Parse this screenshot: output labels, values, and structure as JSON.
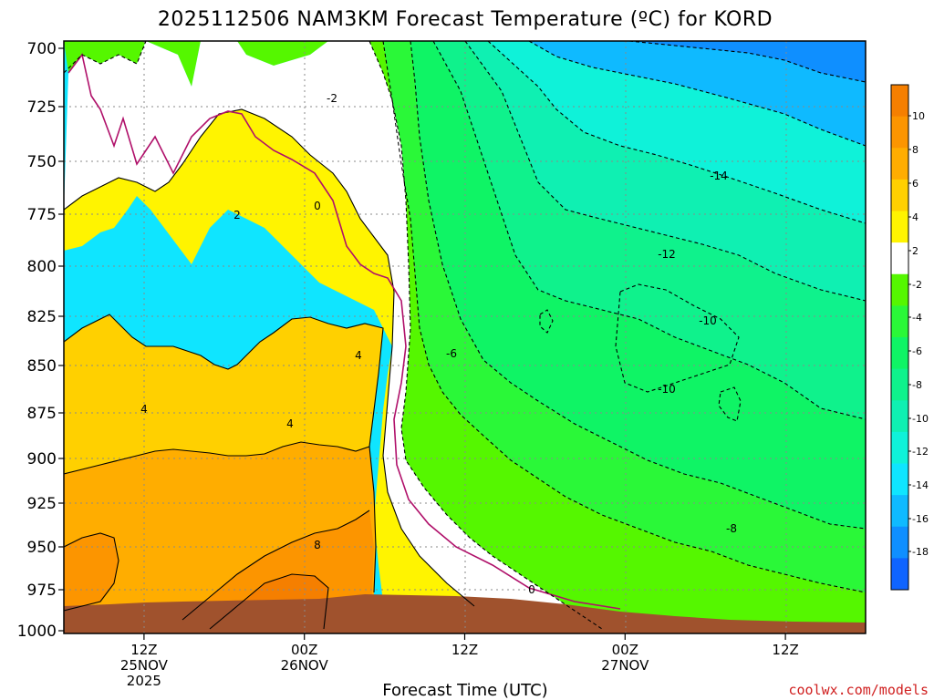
{
  "chart_data": {
    "type": "heatmap",
    "title": "2025112506 NAM3KM Forecast Temperature (ºC) for KORD",
    "xlabel": "Forecast Time (UTC)",
    "ylabel": "",
    "y_ticks": [
      "700",
      "725",
      "750",
      "775",
      "800",
      "825",
      "850",
      "875",
      "900",
      "925",
      "950",
      "975",
      "1000"
    ],
    "y_range": [
      700,
      1000
    ],
    "x_ticks": [
      {
        "hour": 6,
        "lines": [
          "12Z",
          "25NOV",
          "2025"
        ]
      },
      {
        "hour": 18,
        "lines": [
          "00Z",
          "26NOV"
        ]
      },
      {
        "hour": 30,
        "lines": [
          "12Z"
        ]
      },
      {
        "hour": 42,
        "lines": [
          "00Z",
          "27NOV"
        ]
      },
      {
        "hour": 54,
        "lines": [
          "12Z"
        ]
      }
    ],
    "x_range_hours": [
      0,
      60
    ],
    "colorbar": {
      "labels": [
        "10",
        "8",
        "6",
        "4",
        "2",
        "-2",
        "-4",
        "-6",
        "-8",
        "-10",
        "-12",
        "-14",
        "-16",
        "-18"
      ],
      "colors": [
        "#f57f00",
        "#fc9500",
        "#ffad00",
        "#ffd000",
        "#fff400",
        "#ffffff",
        "#55f700",
        "#2af838",
        "#0ff465",
        "#0ff28c",
        "#0ff0b2",
        "#0ff2d9",
        "#0fe5ff",
        "#0fbaff",
        "#0f8fff",
        "#0f64ff"
      ]
    },
    "contour_labels": [
      "-2",
      "2",
      "0",
      "4",
      "4",
      "4",
      "8",
      "-6",
      "-14",
      "-12",
      "-10",
      "-10",
      "-8",
      "0"
    ],
    "colors": {
      "ground": "#a0522d",
      "freezing_line": "#b0106a",
      "contour": "#000000"
    },
    "credit": "coolwx.com/models"
  }
}
